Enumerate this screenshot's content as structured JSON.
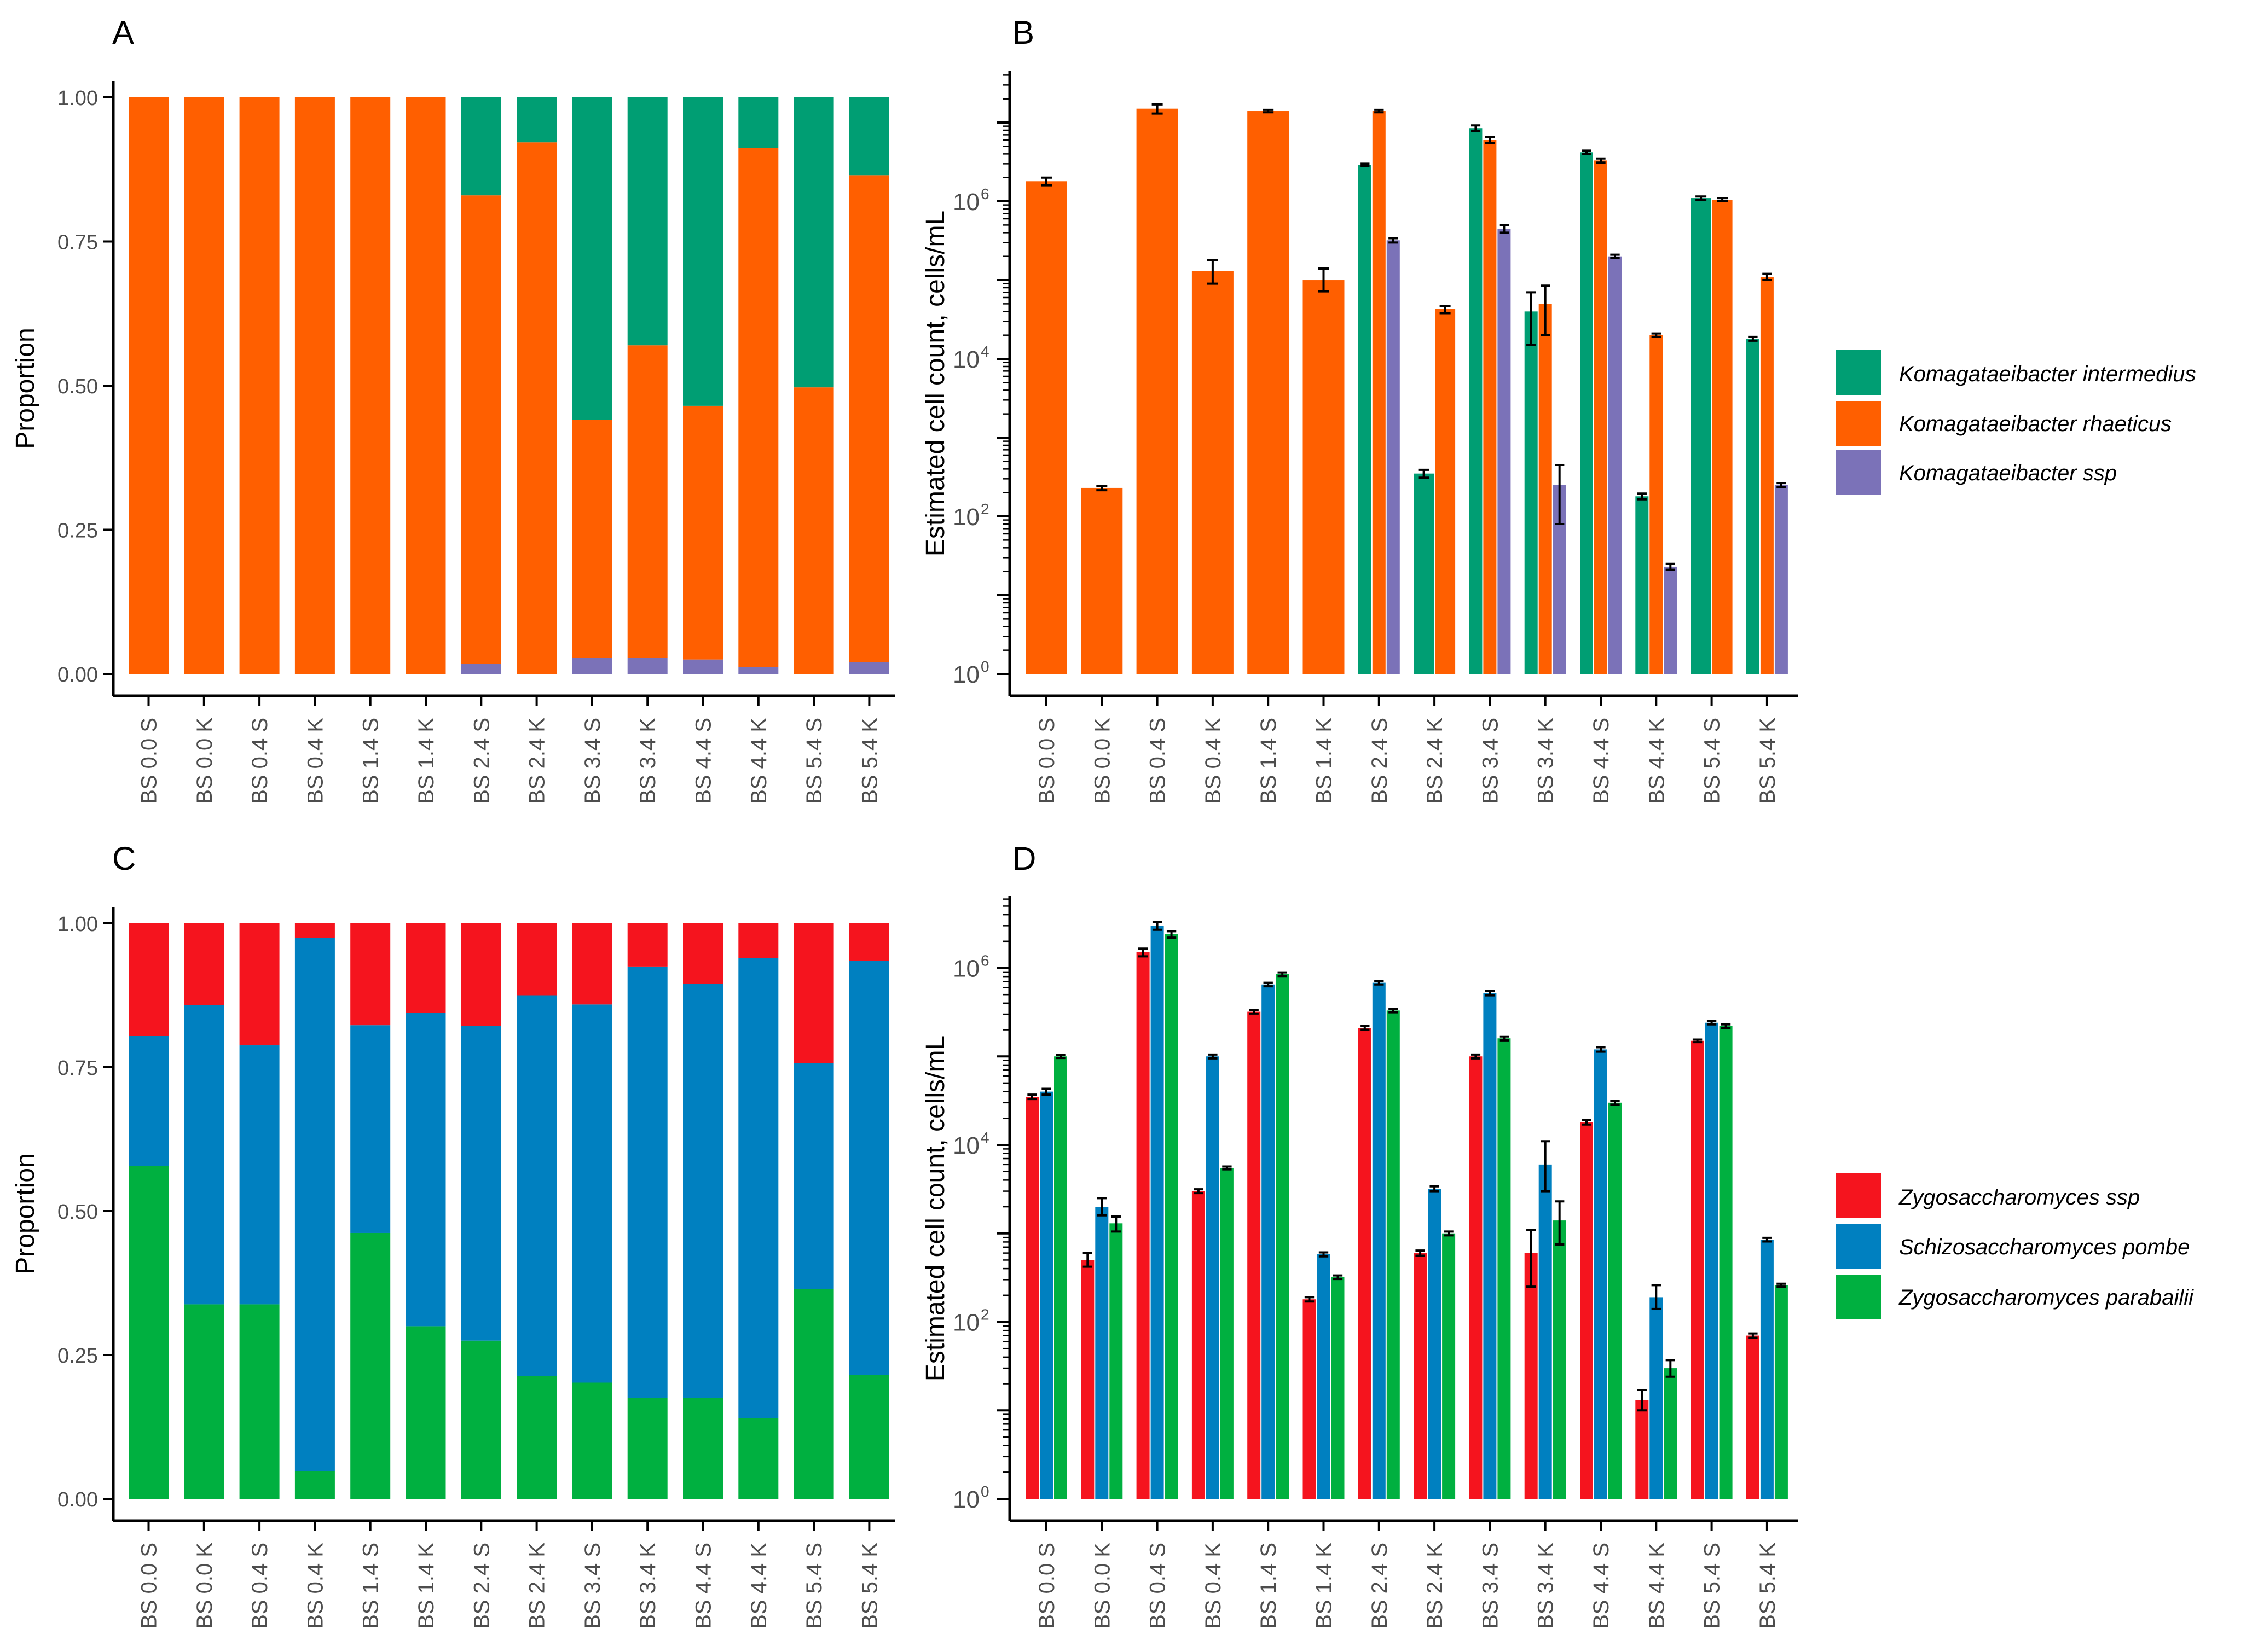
{
  "figure": {
    "panel_labels": [
      "A",
      "B",
      "C",
      "D"
    ]
  },
  "legends": {
    "top": [
      "Komagataeibacter intermedius",
      "Komagataeibacter rhaeticus",
      "Komagataeibacter ssp"
    ],
    "bottom": [
      "Zygosaccharomyces ssp",
      "Schizosaccharomyces pombe",
      "Zygosaccharomyces parabailii"
    ]
  },
  "colors": {
    "k_intermedius": "#009E73",
    "k_rhaeticus": "#FF5F00",
    "k_ssp": "#7B72B8",
    "z_ssp": "#F5141E",
    "s_pombe": "#0080C0",
    "z_parabailii": "#00B040",
    "axis": "#000000",
    "tick_text": "#4d4d4d"
  },
  "chart_data": [
    {
      "panel": "A",
      "type": "bar",
      "stacked": true,
      "title": "",
      "xlabel": "",
      "ylabel": "Proportion",
      "ylim": [
        0,
        1
      ],
      "yticks": [
        "0.00",
        "0.25",
        "0.50",
        "0.75",
        "1.00"
      ],
      "grid": false,
      "categories": [
        "BS 0.0 S",
        "BS 0.0 K",
        "BS 0.4 S",
        "BS 0.4 K",
        "BS 1.4 S",
        "BS 1.4 K",
        "BS 2.4 S",
        "BS 2.4 K",
        "BS 3.4 S",
        "BS 3.4 K",
        "BS 4.4 S",
        "BS 4.4 K",
        "BS 5.4 S",
        "BS 5.4 K"
      ],
      "series": [
        {
          "name": "Komagataeibacter ssp",
          "color": "#7B72B8",
          "values": [
            0,
            0,
            0,
            0,
            0,
            0,
            0.018,
            0,
            0.028,
            0.028,
            0.025,
            0.012,
            0,
            0.02
          ]
        },
        {
          "name": "Komagataeibacter rhaeticus",
          "color": "#FF5F00",
          "values": [
            1,
            1,
            1,
            1,
            1,
            1,
            0.812,
            0.922,
            0.413,
            0.542,
            0.44,
            0.9,
            0.497,
            0.845
          ]
        },
        {
          "name": "Komagataeibacter intermedius",
          "color": "#009E73",
          "values": [
            0,
            0,
            0,
            0,
            0,
            0,
            0.17,
            0.078,
            0.559,
            0.43,
            0.535,
            0.088,
            0.503,
            0.135
          ]
        }
      ]
    },
    {
      "panel": "B",
      "type": "bar",
      "log_scale": true,
      "title": "",
      "xlabel": "",
      "ylabel": "Estimated cell count, cells/mL",
      "ylim": [
        1,
        45000000
      ],
      "yticks": [
        1,
        100,
        10000,
        1000000
      ],
      "yticklabels": [
        [
          "10",
          "0"
        ],
        [
          "10",
          "2"
        ],
        [
          "10",
          "4"
        ],
        [
          "10",
          "6"
        ]
      ],
      "legend_position": "right",
      "categories": [
        "BS 0.0 S",
        "BS 0.0 K",
        "BS 0.4 S",
        "BS 0.4 K",
        "BS 1.4 S",
        "BS 1.4 K",
        "BS 2.4 S",
        "BS 2.4 K",
        "BS 3.4 S",
        "BS 3.4 K",
        "BS 4.4 S",
        "BS 4.4 K",
        "BS 5.4 S",
        "BS 5.4 K"
      ],
      "series": [
        {
          "name": "Komagataeibacter intermedius",
          "color": "#009E73",
          "values": [
            null,
            null,
            null,
            null,
            null,
            null,
            2900000,
            350,
            8500000,
            40000,
            4200000,
            180,
            1100000,
            18000
          ],
          "err_low": [
            null,
            null,
            null,
            null,
            null,
            null,
            2800000,
            310,
            7800000,
            15000,
            4000000,
            165,
            1050000,
            17000
          ],
          "err_high": [
            null,
            null,
            null,
            null,
            null,
            null,
            3000000,
            390,
            9200000,
            70000,
            4400000,
            195,
            1150000,
            19000
          ]
        },
        {
          "name": "Komagataeibacter rhaeticus",
          "color": "#FF5F00",
          "values": [
            1800000,
            230,
            15000000,
            130000,
            14000000,
            100000,
            14000000,
            43000,
            6000000,
            50000,
            3300000,
            20000,
            1050000,
            110000
          ],
          "err_low": [
            1600000,
            215,
            13000000,
            90000,
            13500000,
            72000,
            13500000,
            38000,
            5500000,
            20000,
            3100000,
            19000,
            1000000,
            100000
          ],
          "err_high": [
            2000000,
            245,
            17000000,
            180000,
            14500000,
            140000,
            14500000,
            47000,
            6500000,
            85000,
            3500000,
            21000,
            1100000,
            120000
          ]
        },
        {
          "name": "Komagataeibacter ssp",
          "color": "#7B72B8",
          "values": [
            null,
            null,
            null,
            null,
            null,
            null,
            320000,
            null,
            450000,
            250,
            200000,
            23,
            null,
            250
          ],
          "err_low": [
            null,
            null,
            null,
            null,
            null,
            null,
            300000,
            null,
            400000,
            80,
            190000,
            21,
            null,
            235
          ],
          "err_high": [
            null,
            null,
            null,
            null,
            null,
            null,
            340000,
            null,
            500000,
            450,
            210000,
            25,
            null,
            265
          ]
        }
      ]
    },
    {
      "panel": "C",
      "type": "bar",
      "stacked": true,
      "title": "",
      "xlabel": "",
      "ylabel": "Proportion",
      "ylim": [
        0,
        1
      ],
      "yticks": [
        "0.00",
        "0.25",
        "0.50",
        "0.75",
        "1.00"
      ],
      "grid": false,
      "categories": [
        "BS 0.0 S",
        "BS 0.0 K",
        "BS 0.4 S",
        "BS 0.4 K",
        "BS 1.4 S",
        "BS 1.4 K",
        "BS 2.4 S",
        "BS 2.4 K",
        "BS 3.4 S",
        "BS 3.4 K",
        "BS 4.4 S",
        "BS 4.4 K",
        "BS 5.4 S",
        "BS 5.4 K"
      ],
      "series": [
        {
          "name": "Zygosaccharomyces parabailii",
          "color": "#00B040",
          "values": [
            0.578,
            0.338,
            0.338,
            0.048,
            0.462,
            0.3,
            0.275,
            0.213,
            0.202,
            0.175,
            0.175,
            0.14,
            0.365,
            0.215
          ]
        },
        {
          "name": "Schizosaccharomyces pombe",
          "color": "#0080C0",
          "values": [
            0.227,
            0.52,
            0.45,
            0.927,
            0.361,
            0.545,
            0.547,
            0.662,
            0.657,
            0.75,
            0.72,
            0.8,
            0.392,
            0.72
          ]
        },
        {
          "name": "Zygosaccharomyces ssp",
          "color": "#F5141E",
          "values": [
            0.195,
            0.142,
            0.212,
            0.025,
            0.177,
            0.155,
            0.178,
            0.125,
            0.141,
            0.075,
            0.105,
            0.06,
            0.243,
            0.065
          ]
        }
      ]
    },
    {
      "panel": "D",
      "type": "bar",
      "log_scale": true,
      "title": "",
      "xlabel": "",
      "ylabel": "Estimated cell count, cells/mL",
      "ylim": [
        1,
        6500000
      ],
      "yticks": [
        1,
        100,
        10000,
        1000000
      ],
      "yticklabels": [
        [
          "10",
          "0"
        ],
        [
          "10",
          "2"
        ],
        [
          "10",
          "4"
        ],
        [
          "10",
          "6"
        ]
      ],
      "legend_position": "right",
      "categories": [
        "BS 0.0 S",
        "BS 0.0 K",
        "BS 0.4 S",
        "BS 0.4 K",
        "BS 1.4 S",
        "BS 1.4 K",
        "BS 2.4 S",
        "BS 2.4 K",
        "BS 3.4 S",
        "BS 3.4 K",
        "BS 4.4 S",
        "BS 4.4 K",
        "BS 5.4 S",
        "BS 5.4 K"
      ],
      "series": [
        {
          "name": "Zygosaccharomyces ssp",
          "color": "#F5141E",
          "values": [
            35000,
            500,
            1500000,
            3000,
            320000,
            180,
            210000,
            600,
            100000,
            600,
            18000,
            13,
            150000,
            70
          ],
          "err_low": [
            33000,
            420,
            1350000,
            2850,
            305000,
            170,
            200000,
            560,
            95000,
            250,
            17000,
            10,
            145000,
            66
          ],
          "err_high": [
            37000,
            600,
            1650000,
            3150,
            335000,
            190,
            220000,
            640,
            105000,
            1100,
            19000,
            17,
            155000,
            74
          ]
        },
        {
          "name": "Schizosaccharomyces pombe",
          "color": "#0080C0",
          "values": [
            40000,
            2000,
            3000000,
            100000,
            650000,
            580,
            680000,
            3200,
            520000,
            6000,
            120000,
            190,
            240000,
            850
          ],
          "err_low": [
            37000,
            1600,
            2700000,
            95000,
            620000,
            550,
            650000,
            3000,
            490000,
            3000,
            113000,
            140,
            230000,
            810
          ],
          "err_high": [
            43000,
            2500,
            3300000,
            105000,
            680000,
            610,
            710000,
            3400,
            550000,
            11000,
            127000,
            260,
            250000,
            890
          ]
        },
        {
          "name": "Zygosaccharomyces parabailii",
          "color": "#00B040",
          "values": [
            100000,
            1300,
            2400000,
            5500,
            850000,
            320,
            330000,
            1000,
            160000,
            1400,
            30000,
            30,
            220000,
            260
          ],
          "err_low": [
            96000,
            1050,
            2200000,
            5300,
            810000,
            305,
            315000,
            950,
            152000,
            750,
            28500,
            24,
            210000,
            250
          ],
          "err_high": [
            104000,
            1550,
            2600000,
            5700,
            890000,
            335,
            345000,
            1050,
            168000,
            2300,
            31500,
            37,
            230000,
            270
          ]
        }
      ]
    }
  ]
}
